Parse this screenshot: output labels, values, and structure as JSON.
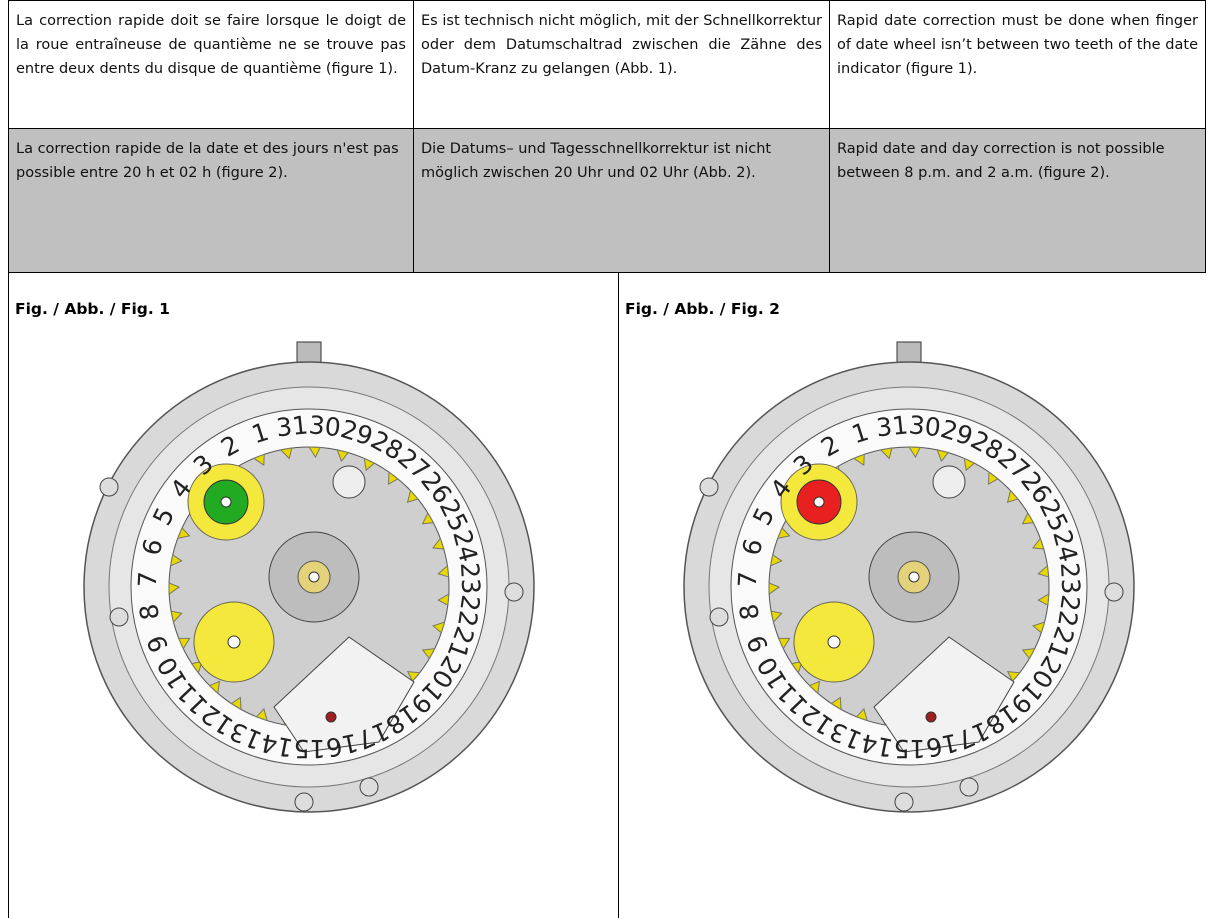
{
  "table": {
    "rows": [
      [
        "La correction rapide doit se faire lorsque le doigt de la roue entraîneuse de quantième ne se trouve pas entre deux dents du disque de quantième (figure 1).",
        "Es ist technisch nicht möglich, mit der Schnellkorrektur oder dem Datumschaltrad zwischen die Zähne des Datum-Kranz zu gelangen (Abb. 1).",
        "Rapid date correction must be done when finger of date wheel isn’t between two teeth of the date indicator (figure 1)."
      ],
      [
        "La correction rapide de la date et des jours n'est pas possible entre 20 h et 02 h (figure 2).",
        "Die Datums– und Tagesschnellkorrektur ist nicht möglich zwischen 20 Uhr und 02 Uhr (Abb. 2).",
        "Rapid date and day correction is not possible between 8 p.m. and 2 a.m. (figure 2)."
      ]
    ]
  },
  "figures": [
    {
      "label": "Fig. / Abb. / Fig. 1",
      "wheel_color": "#22aa22",
      "date_ring": [
        "1",
        "2",
        "3",
        "4",
        "5",
        "6",
        "7",
        "8",
        "9",
        "10",
        "11",
        "12",
        "13",
        "14",
        "15",
        "16",
        "17",
        "18",
        "19",
        "20",
        "21",
        "22",
        "23",
        "24",
        "25",
        "26",
        "27",
        "28",
        "29",
        "30",
        "31"
      ]
    },
    {
      "label": "Fig. / Abb. / Fig. 2",
      "wheel_color": "#e82020",
      "date_ring": [
        "1",
        "2",
        "3",
        "4",
        "5",
        "6",
        "7",
        "8",
        "9",
        "10",
        "11",
        "12",
        "13",
        "14",
        "15",
        "16",
        "17",
        "18",
        "19",
        "20",
        "21",
        "22",
        "23",
        "24",
        "25",
        "26",
        "27",
        "28",
        "29",
        "30",
        "31"
      ]
    }
  ]
}
